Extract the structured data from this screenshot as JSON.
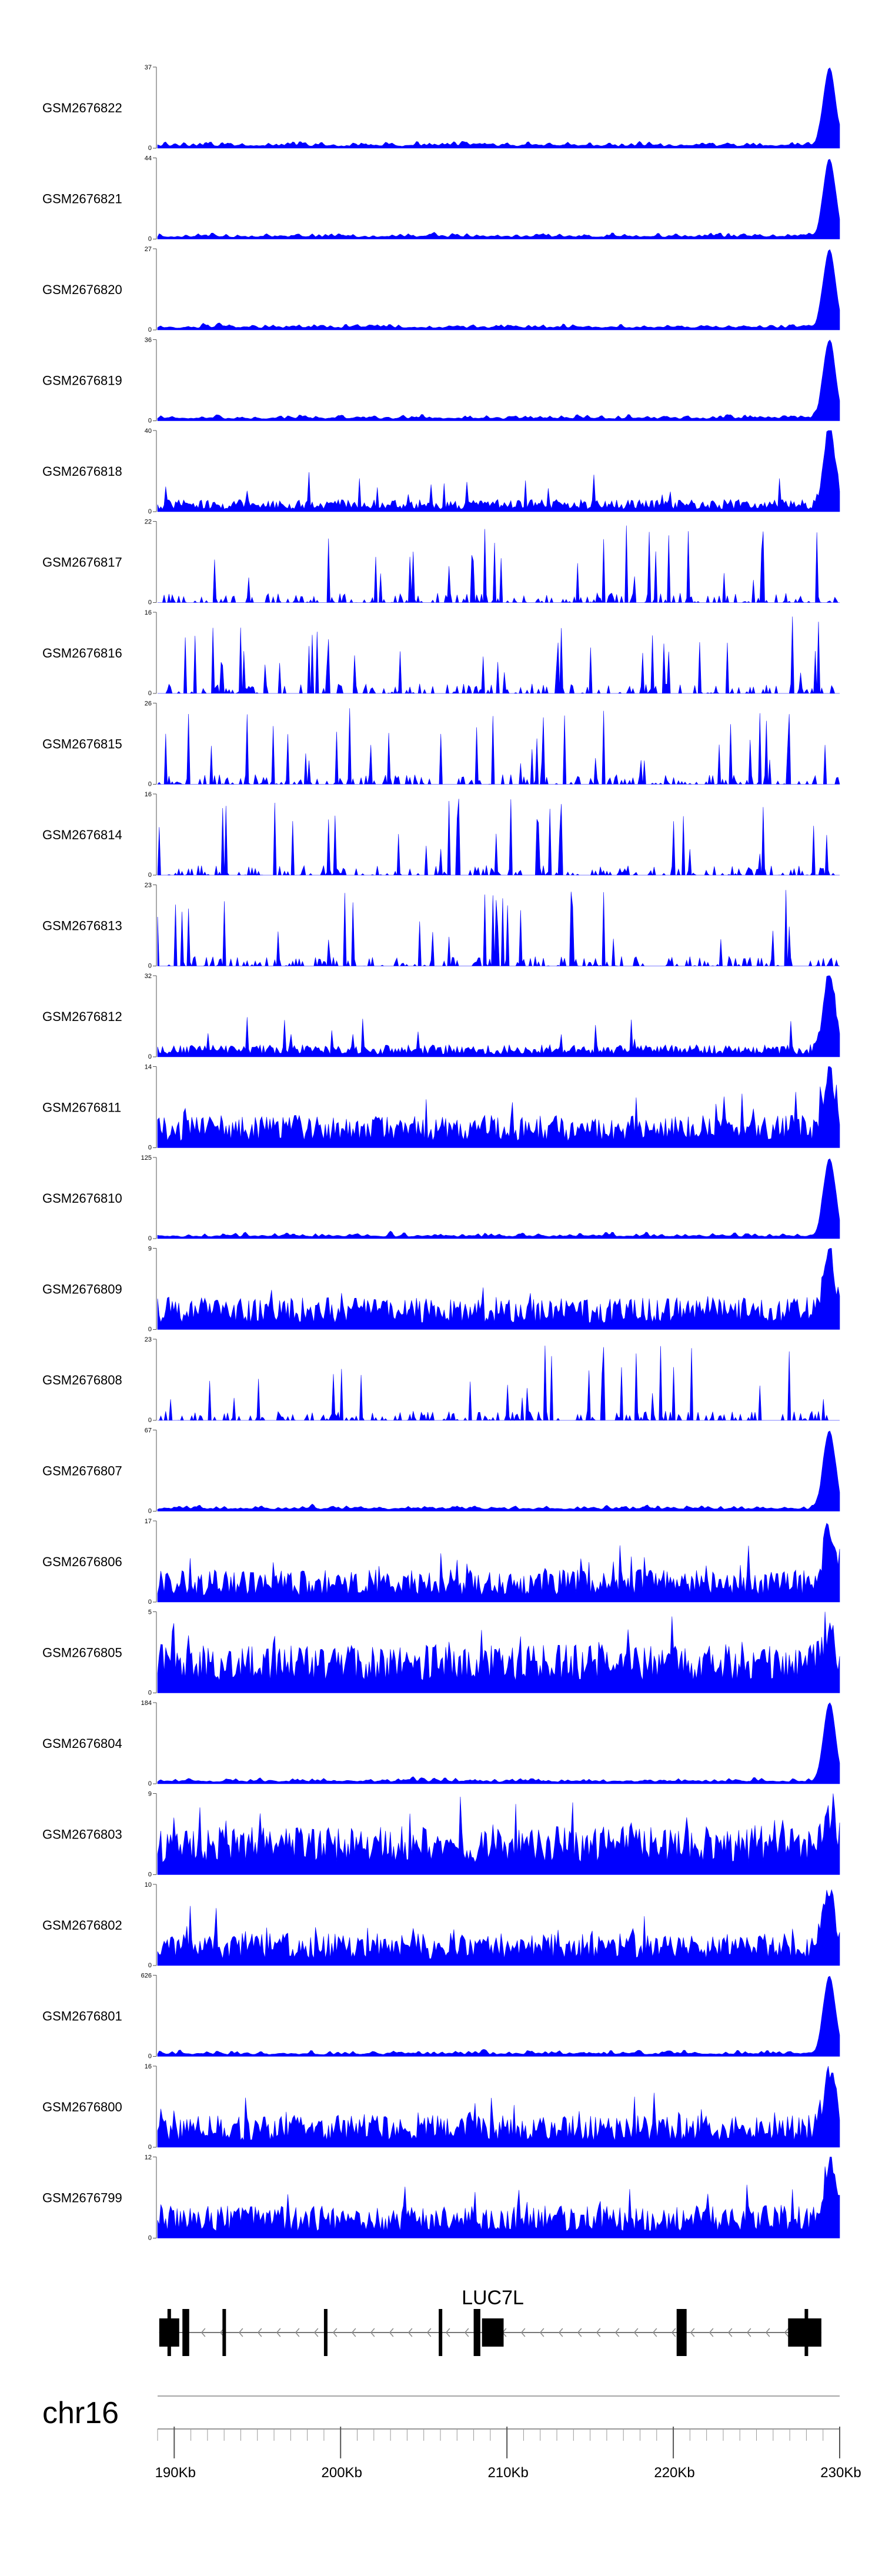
{
  "chart_data": {
    "type": "area",
    "title": "",
    "xlabel": "",
    "ylabel": "",
    "track_color": "#0000ff",
    "chromosome": "chr16",
    "xlim_kb": [
      189,
      230
    ],
    "x_ticks": [
      {
        "kb": 190,
        "label": "190Kb"
      },
      {
        "kb": 200,
        "label": "200Kb"
      },
      {
        "kb": 210,
        "label": "210Kb"
      },
      {
        "kb": 220,
        "label": "220Kb"
      },
      {
        "kb": 230,
        "label": "230Kb"
      }
    ],
    "gene": {
      "name": "LUC7L",
      "start_kb": 189.1,
      "end_kb": 228.9,
      "strand": "-",
      "exons_kb": [
        [
          189.1,
          190.3
        ],
        [
          190.5,
          190.9
        ],
        [
          192.9,
          193.1
        ],
        [
          199.0,
          199.2
        ],
        [
          205.9,
          206.1
        ],
        [
          208.0,
          208.4
        ],
        [
          208.5,
          209.8
        ],
        [
          220.2,
          220.8
        ],
        [
          226.9,
          228.9
        ]
      ]
    },
    "tracks": [
      {
        "name": "GSM2676822",
        "ymax": 37,
        "profile": "peak"
      },
      {
        "name": "GSM2676821",
        "ymax": 44,
        "profile": "peak"
      },
      {
        "name": "GSM2676820",
        "ymax": 27,
        "profile": "peak"
      },
      {
        "name": "GSM2676819",
        "ymax": 36,
        "profile": "peak"
      },
      {
        "name": "GSM2676818",
        "ymax": 40,
        "profile": "peak-noisy"
      },
      {
        "name": "GSM2676817",
        "ymax": 22,
        "profile": "spiky"
      },
      {
        "name": "GSM2676816",
        "ymax": 16,
        "profile": "spiky"
      },
      {
        "name": "GSM2676815",
        "ymax": 26,
        "profile": "spiky"
      },
      {
        "name": "GSM2676814",
        "ymax": 16,
        "profile": "spiky"
      },
      {
        "name": "GSM2676813",
        "ymax": 23,
        "profile": "spiky"
      },
      {
        "name": "GSM2676812",
        "ymax": 32,
        "profile": "peak-noisy"
      },
      {
        "name": "GSM2676811",
        "ymax": 14,
        "profile": "dense-peak"
      },
      {
        "name": "GSM2676810",
        "ymax": 125,
        "profile": "peak"
      },
      {
        "name": "GSM2676809",
        "ymax": 9,
        "profile": "dense-peak"
      },
      {
        "name": "GSM2676808",
        "ymax": 23,
        "profile": "spiky"
      },
      {
        "name": "GSM2676807",
        "ymax": 67,
        "profile": "peak"
      },
      {
        "name": "GSM2676806",
        "ymax": 17,
        "profile": "dense-peak"
      },
      {
        "name": "GSM2676805",
        "ymax": 5,
        "profile": "dense"
      },
      {
        "name": "GSM2676804",
        "ymax": 184,
        "profile": "peak"
      },
      {
        "name": "GSM2676803",
        "ymax": 9,
        "profile": "dense"
      },
      {
        "name": "GSM2676802",
        "ymax": 10,
        "profile": "dense-peak"
      },
      {
        "name": "GSM2676801",
        "ymax": 626,
        "profile": "peak"
      },
      {
        "name": "GSM2676800",
        "ymax": 16,
        "profile": "dense-peak"
      },
      {
        "name": "GSM2676799",
        "ymax": 12,
        "profile": "dense-peak"
      }
    ]
  }
}
